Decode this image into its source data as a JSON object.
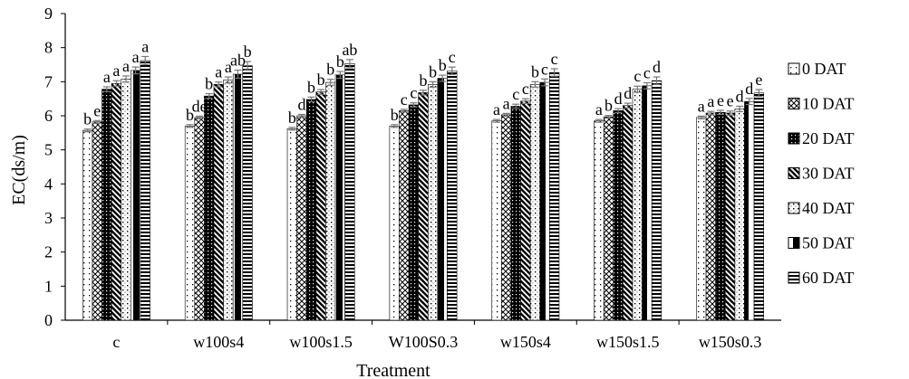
{
  "chart_data": {
    "type": "bar",
    "title": "",
    "xlabel": "Treatment",
    "ylabel": "EC(ds/m)",
    "ylim": [
      0,
      9
    ],
    "yticks": [
      "0",
      "1",
      "2",
      "3",
      "4",
      "5",
      "6",
      "7",
      "8",
      "9"
    ],
    "grid": false,
    "legend_position": "right",
    "categories": [
      "c",
      "w100s4",
      "w100s1.5",
      "W100S0.3",
      "w150s4",
      "w150s1.5",
      "w150s0.3"
    ],
    "series": [
      {
        "name": "0 DAT",
        "pattern": "sparse-dots",
        "values": [
          5.57,
          5.7,
          5.62,
          5.7,
          5.85,
          5.85,
          5.95
        ],
        "errors": [
          0.04,
          0.04,
          0.04,
          0.04,
          0.04,
          0.04,
          0.04
        ],
        "labels": [
          "b",
          "b",
          "b",
          "b",
          "a",
          "a",
          "a"
        ]
      },
      {
        "name": "10 DAT",
        "pattern": "checker",
        "values": [
          5.82,
          5.95,
          6.0,
          6.15,
          6.03,
          5.97,
          6.08
        ],
        "errors": [
          0.04,
          0.04,
          0.04,
          0.04,
          0.04,
          0.04,
          0.05
        ],
        "labels": [
          "e",
          "de",
          "d",
          "c",
          "a",
          "b",
          "a"
        ]
      },
      {
        "name": "20 DAT",
        "pattern": "dark-dots",
        "values": [
          6.78,
          6.58,
          6.48,
          6.32,
          6.28,
          6.15,
          6.1
        ],
        "errors": [
          0.07,
          0.07,
          0.07,
          0.06,
          0.06,
          0.06,
          0.06
        ],
        "labels": [
          "a",
          "b",
          "b",
          "c",
          "c",
          "d",
          "e"
        ]
      },
      {
        "name": "30 DAT",
        "pattern": "diagonal",
        "values": [
          6.95,
          6.92,
          6.7,
          6.68,
          6.43,
          6.3,
          6.08
        ],
        "errors": [
          0.08,
          0.07,
          0.07,
          0.07,
          0.07,
          0.07,
          0.06
        ],
        "labels": [
          "a",
          "a",
          "b",
          "b",
          "c",
          "d",
          "e"
        ]
      },
      {
        "name": "40 DAT",
        "pattern": "dotted-grid",
        "values": [
          7.08,
          7.05,
          6.98,
          6.92,
          6.92,
          6.78,
          6.2
        ],
        "errors": [
          0.09,
          0.09,
          0.09,
          0.08,
          0.08,
          0.09,
          0.08
        ],
        "labels": [
          "a",
          "a",
          "b",
          "b",
          "b",
          "c",
          "d"
        ]
      },
      {
        "name": "50 DAT",
        "pattern": "vertical-half",
        "values": [
          7.33,
          7.22,
          7.2,
          7.1,
          6.98,
          6.88,
          6.42
        ],
        "errors": [
          0.1,
          0.12,
          0.1,
          0.09,
          0.1,
          0.09,
          0.09
        ],
        "labels": [
          "a",
          "ab",
          "b",
          "b",
          "c",
          "c",
          "d"
        ]
      },
      {
        "name": "60 DAT",
        "pattern": "horizontal",
        "values": [
          7.62,
          7.47,
          7.53,
          7.32,
          7.27,
          7.03,
          6.67
        ],
        "errors": [
          0.12,
          0.12,
          0.12,
          0.11,
          0.11,
          0.11,
          0.1
        ],
        "labels": [
          "a",
          "b",
          "ab",
          "c",
          "c",
          "d",
          "e"
        ]
      }
    ]
  }
}
